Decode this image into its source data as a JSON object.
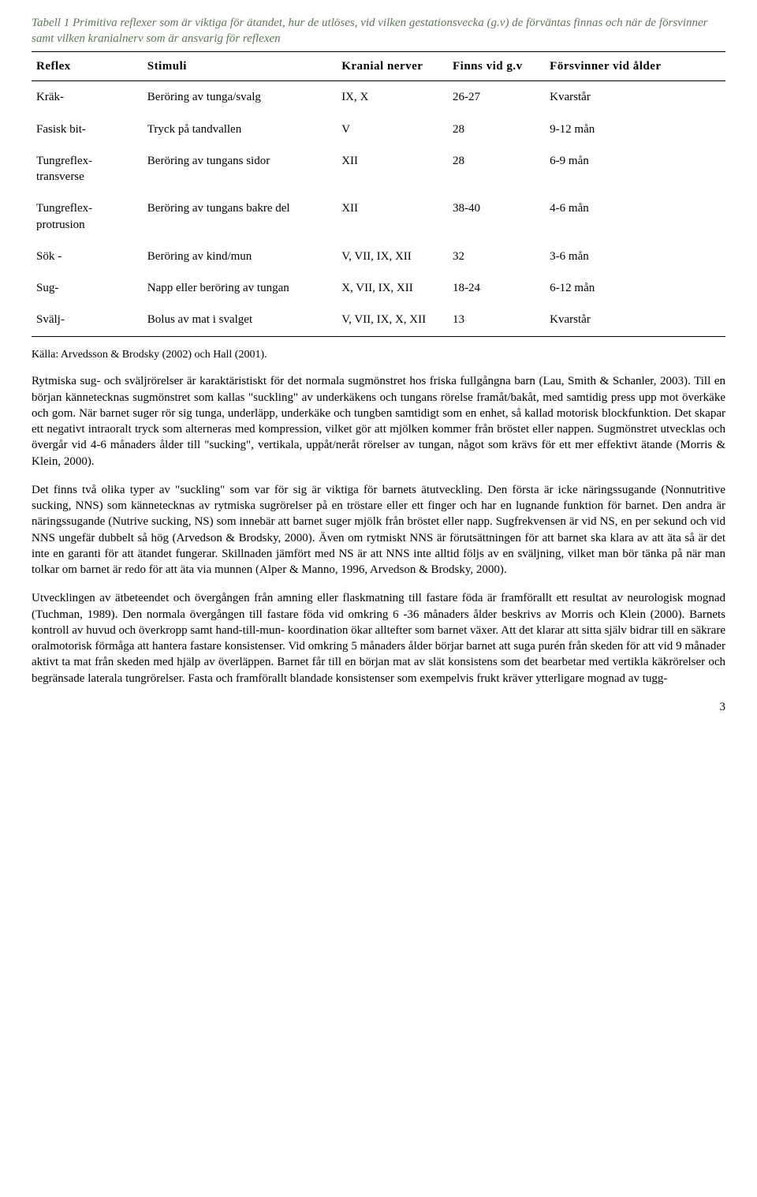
{
  "caption": "Tabell 1 Primitiva reflexer som är viktiga för ätandet, hur de utlöses, vid vilken gestationsvecka (g.v) de förväntas finnas och när de försvinner samt vilken kranialnerv som är ansvarig för reflexen",
  "headers": {
    "reflex": "Reflex",
    "stimuli": "Stimuli",
    "nerver": "Kranial nerver",
    "gv": "Finns vid g.v",
    "forsvinner": "Försvinner vid ålder"
  },
  "rows": [
    {
      "reflex": "Kräk-",
      "stimuli": "Beröring av tunga/svalg",
      "nerver": "IX, X",
      "gv": "26-27",
      "forsv": "Kvarstår"
    },
    {
      "reflex": "Fasisk bit-",
      "stimuli": "Tryck på tandvallen",
      "nerver": "V",
      "gv": "28",
      "forsv": "9-12 mån"
    },
    {
      "reflex": "Tungreflex- transverse",
      "stimuli": "Beröring av tungans sidor",
      "nerver": "XII",
      "gv": "28",
      "forsv": "6-9 mån"
    },
    {
      "reflex": "Tungreflex- protrusion",
      "stimuli": "Beröring av tungans bakre del",
      "nerver": "XII",
      "gv": "38-40",
      "forsv": "4-6 mån"
    },
    {
      "reflex": "Sök -",
      "stimuli": "Beröring av kind/mun",
      "nerver": "V, VII, IX, XII",
      "gv": "32",
      "forsv": "3-6 mån"
    },
    {
      "reflex": "Sug-",
      "stimuli": "Napp eller beröring av tungan",
      "nerver": "X, VII, IX, XII",
      "gv": "18-24",
      "forsv": "6-12 mån"
    },
    {
      "reflex": "Svälj-",
      "stimuli": "Bolus av mat i svalget",
      "nerver": "V, VII, IX, X, XII",
      "gv": "13",
      "forsv": "Kvarstår"
    }
  ],
  "source": "Källa: Arvedsson & Brodsky (2002) och Hall (2001).",
  "para1": "Rytmiska sug- och sväljrörelser är karaktäristiskt för det normala sugmönstret hos friska fullgångna barn (Lau, Smith & Schanler, 2003). Till en början kännetecknas sugmönstret som kallas \"suckling\" av underkäkens och tungans rörelse framåt/bakåt, med samtidig press upp mot överkäke och gom. När barnet suger rör sig tunga, underläpp, underkäke och tungben samtidigt som en enhet, så kallad motorisk blockfunktion. Det skapar ett negativt intraoralt tryck som alterneras med kompression, vilket gör att mjölken kommer från bröstet eller nappen. Sugmönstret utvecklas och övergår vid 4-6 månaders ålder till \"sucking\", vertikala, uppåt/neråt rörelser av tungan, något som krävs för ett mer effektivt ätande (Morris & Klein, 2000).",
  "para2": "Det finns två olika typer av \"suckling\" som var för sig är viktiga för barnets ätutveckling. Den första är icke näringssugande (Nonnutritive sucking, NNS) som kännetecknas av rytmiska sugrörelser på en tröstare eller ett finger och har en lugnande funktion för barnet. Den andra är näringssugande (Nutrive sucking, NS) som innebär att barnet suger mjölk från bröstet eller napp. Sugfrekvensen är vid NS, en per sekund och vid NNS ungefär dubbelt så hög (Arvedson & Brodsky, 2000). Även om rytmiskt NNS är förutsättningen för att barnet ska klara av att äta så är det inte en garanti för att ätandet fungerar. Skillnaden jämfört med NS är att NNS inte alltid följs av en sväljning, vilket man bör tänka på när man tolkar om barnet är redo för att äta via munnen (Alper & Manno, 1996, Arvedson & Brodsky, 2000).",
  "para3": "Utvecklingen av ätbeteendet och övergången från amning eller flaskmatning till fastare föda är framförallt ett resultat av neurologisk mognad (Tuchman, 1989). Den normala övergången till fastare föda vid omkring 6 -36 månaders ålder beskrivs av Morris och Klein (2000). Barnets kontroll av huvud och överkropp samt hand-till-mun- koordination ökar alltefter som barnet växer. Att det klarar att sitta själv bidrar till en  säkrare oralmotorisk förmåga att hantera fastare konsistenser. Vid omkring 5 månaders ålder börjar barnet att suga purén från skeden för att vid 9 månader aktivt ta mat från skeden med hjälp av överläppen. Barnet får till en början mat av slät konsistens som det bearbetar med vertikla käkrörelser och begränsade laterala tungrörelser. Fasta och framförallt blandade konsistenser som exempelvis frukt kräver ytterligare mognad av tugg-",
  "pageNumber": "3"
}
